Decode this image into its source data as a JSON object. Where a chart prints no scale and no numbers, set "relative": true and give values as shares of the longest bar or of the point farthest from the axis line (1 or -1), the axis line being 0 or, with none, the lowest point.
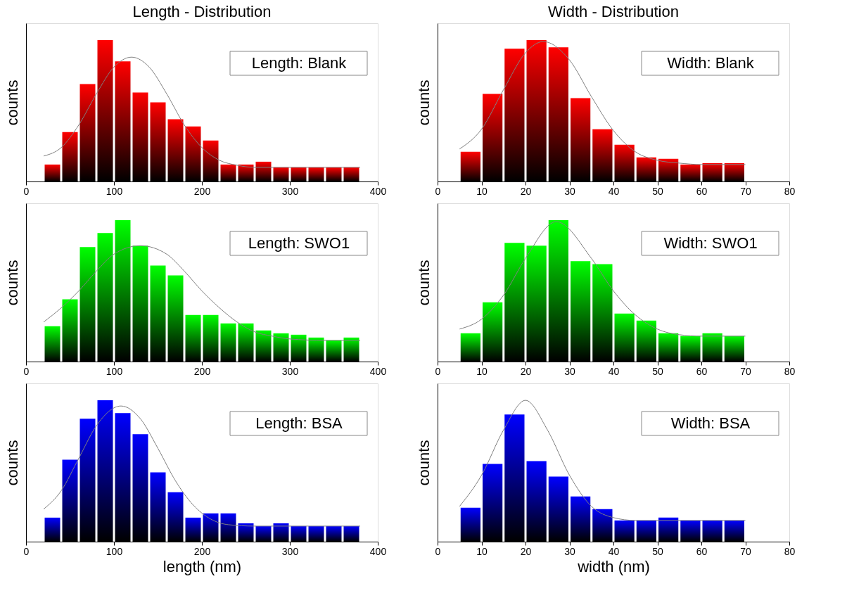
{
  "chart_data": [
    {
      "type": "histogram",
      "title": "Length - Distribution",
      "ylabel": "counts",
      "relative": true,
      "xlim": [
        0,
        400
      ],
      "xticks": [
        0,
        100,
        200,
        300,
        400
      ],
      "annotations": [
        "Length: Blank"
      ],
      "bins": [
        20,
        40,
        60,
        80,
        100,
        120,
        140,
        160,
        180,
        200,
        220,
        240,
        260,
        280,
        300,
        320,
        340,
        360,
        380
      ],
      "series": [
        {
          "type": "histogram",
          "color": "#ff0000",
          "values": [
            0.12,
            0.35,
            0.69,
            1,
            0.85,
            0.63,
            0.56,
            0.44,
            0.39,
            0.29,
            0.12,
            0.12,
            0.14,
            0.1,
            0.1,
            0.1,
            0.1,
            0.1
          ]
        },
        {
          "type": "line",
          "color": "#808080",
          "x": [
            20,
            40,
            60,
            80,
            100,
            120,
            140,
            160,
            180,
            200,
            220,
            240,
            260,
            300,
            380
          ],
          "values": [
            0.18,
            0.24,
            0.4,
            0.62,
            0.81,
            0.88,
            0.81,
            0.62,
            0.4,
            0.24,
            0.15,
            0.115,
            0.1,
            0.1,
            0.1
          ]
        }
      ]
    },
    {
      "type": "histogram",
      "title": "Width - Distribution",
      "ylabel": "counts",
      "relative": true,
      "xlim": [
        0,
        80
      ],
      "xticks": [
        0,
        10,
        20,
        30,
        40,
        50,
        60,
        70,
        80
      ],
      "annotations": [
        "Width: Blank"
      ],
      "bins": [
        5,
        10,
        15,
        20,
        25,
        30,
        35,
        40,
        45,
        50,
        55,
        60,
        65,
        70
      ],
      "series": [
        {
          "type": "histogram",
          "color": "#ff0000",
          "values": [
            0.21,
            0.62,
            0.94,
            1,
            0.95,
            0.59,
            0.37,
            0.26,
            0.17,
            0.16,
            0.12,
            0.13,
            0.13
          ]
        },
        {
          "type": "line",
          "color": "#808080",
          "x": [
            5,
            10,
            15,
            20,
            24,
            30,
            35,
            40,
            45,
            50,
            55,
            60,
            70
          ],
          "values": [
            0.23,
            0.37,
            0.65,
            0.91,
            0.99,
            0.86,
            0.6,
            0.36,
            0.21,
            0.15,
            0.13,
            0.12,
            0.12
          ]
        }
      ]
    },
    {
      "type": "histogram",
      "ylabel": "counts",
      "relative": true,
      "xlim": [
        0,
        400
      ],
      "xticks": [
        0,
        100,
        200,
        300,
        400
      ],
      "annotations": [
        "Length: SWO1"
      ],
      "bins": [
        20,
        40,
        60,
        80,
        100,
        120,
        140,
        160,
        180,
        200,
        220,
        240,
        260,
        280,
        300,
        320,
        340,
        360,
        380
      ],
      "series": [
        {
          "type": "histogram",
          "color": "#00ff00",
          "values": [
            0.25,
            0.44,
            0.81,
            0.91,
            1,
            0.82,
            0.68,
            0.61,
            0.33,
            0.33,
            0.27,
            0.27,
            0.22,
            0.2,
            0.19,
            0.17,
            0.15,
            0.17
          ]
        },
        {
          "type": "line",
          "color": "#808080",
          "x": [
            20,
            40,
            60,
            80,
            100,
            130,
            160,
            180,
            200,
            220,
            240,
            260,
            280,
            300,
            340,
            380
          ],
          "values": [
            0.28,
            0.38,
            0.5,
            0.64,
            0.76,
            0.82,
            0.76,
            0.64,
            0.5,
            0.38,
            0.28,
            0.21,
            0.18,
            0.16,
            0.15,
            0.15
          ]
        }
      ]
    },
    {
      "type": "histogram",
      "ylabel": "counts",
      "relative": true,
      "xlim": [
        0,
        80
      ],
      "xticks": [
        0,
        10,
        20,
        30,
        40,
        50,
        60,
        70,
        80
      ],
      "annotations": [
        "Width: SWO1"
      ],
      "bins": [
        5,
        10,
        15,
        20,
        25,
        30,
        35,
        40,
        45,
        50,
        55,
        60,
        65,
        70
      ],
      "series": [
        {
          "type": "histogram",
          "color": "#00ff00",
          "values": [
            0.2,
            0.42,
            0.84,
            0.82,
            1,
            0.71,
            0.69,
            0.34,
            0.29,
            0.2,
            0.18,
            0.2,
            0.18
          ]
        },
        {
          "type": "line",
          "color": "#808080",
          "x": [
            5,
            10,
            15,
            20,
            27,
            35,
            40,
            45,
            50,
            55,
            60,
            70
          ],
          "values": [
            0.23,
            0.3,
            0.47,
            0.73,
            0.99,
            0.73,
            0.5,
            0.33,
            0.23,
            0.19,
            0.18,
            0.18
          ]
        }
      ]
    },
    {
      "type": "histogram",
      "ylabel": "counts",
      "xlabel": "length (nm)",
      "relative": true,
      "xlim": [
        0,
        400
      ],
      "xticks": [
        0,
        100,
        200,
        300,
        400
      ],
      "annotations": [
        "Length: BSA"
      ],
      "bins": [
        20,
        40,
        60,
        80,
        100,
        120,
        140,
        160,
        180,
        200,
        220,
        240,
        260,
        280,
        300,
        320,
        340,
        360,
        380
      ],
      "series": [
        {
          "type": "histogram",
          "color": "#0000ff",
          "values": [
            0.17,
            0.58,
            0.87,
            1,
            0.91,
            0.76,
            0.49,
            0.35,
            0.17,
            0.2,
            0.2,
            0.13,
            0.11,
            0.13,
            0.11,
            0.11,
            0.11,
            0.11
          ]
        },
        {
          "type": "line",
          "color": "#808080",
          "x": [
            20,
            40,
            60,
            80,
            108,
            130,
            150,
            170,
            190,
            210,
            230,
            260,
            380
          ],
          "values": [
            0.23,
            0.36,
            0.59,
            0.82,
            0.96,
            0.87,
            0.66,
            0.43,
            0.26,
            0.16,
            0.12,
            0.11,
            0.11
          ]
        }
      ]
    },
    {
      "type": "histogram",
      "ylabel": "counts",
      "xlabel": "width (nm)",
      "relative": true,
      "xlim": [
        0,
        80
      ],
      "xticks": [
        0,
        10,
        20,
        30,
        40,
        50,
        60,
        70,
        80
      ],
      "annotations": [
        "Width: BSA"
      ],
      "bins": [
        5,
        10,
        15,
        20,
        25,
        30,
        35,
        40,
        45,
        50,
        55,
        60,
        65,
        70
      ],
      "series": [
        {
          "type": "histogram",
          "color": "#0000ff",
          "values": [
            0.24,
            0.55,
            0.9,
            0.57,
            0.46,
            0.32,
            0.23,
            0.15,
            0.15,
            0.17,
            0.15,
            0.15,
            0.15
          ]
        },
        {
          "type": "line",
          "color": "#808080",
          "x": [
            5,
            10,
            15,
            20,
            25,
            30,
            35,
            40,
            45,
            70
          ],
          "values": [
            0.25,
            0.47,
            0.79,
            1,
            0.79,
            0.47,
            0.25,
            0.17,
            0.15,
            0.15
          ]
        }
      ]
    }
  ]
}
